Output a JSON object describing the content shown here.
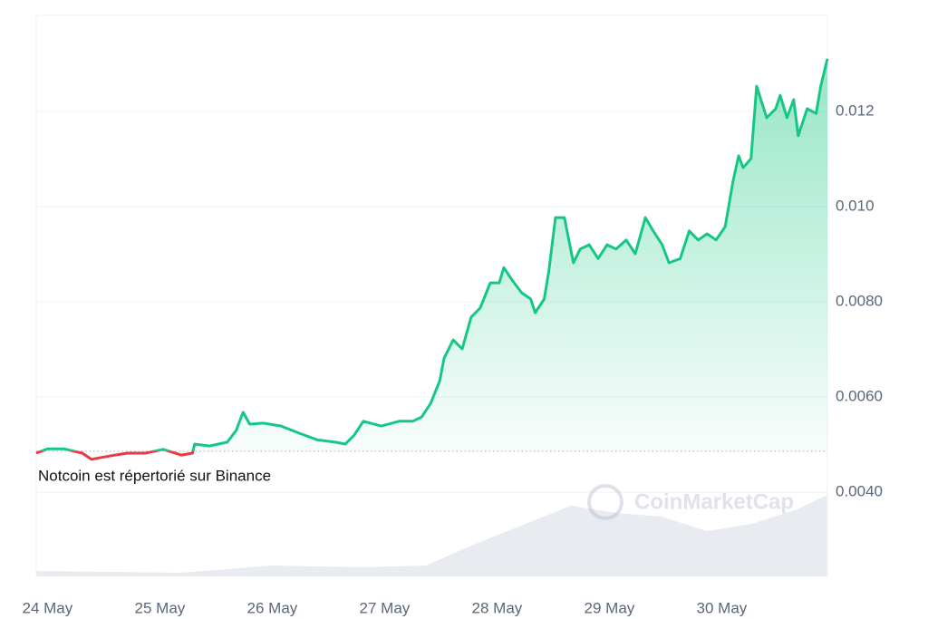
{
  "chart_data": {
    "type": "line",
    "x": [
      -0.1,
      0,
      0.15,
      0.31,
      0.39,
      0.55,
      0.71,
      0.87,
      1.03,
      1.19,
      1.29,
      1.31,
      1.44,
      1.6,
      1.68,
      1.74,
      1.8,
      1.92,
      2.08,
      2.24,
      2.4,
      2.56,
      2.65,
      2.73,
      2.81,
      2.97,
      3.13,
      3.25,
      3.33,
      3.41,
      3.49,
      3.53,
      3.61,
      3.69,
      3.77,
      3.85,
      3.94,
      4.02,
      4.06,
      4.14,
      4.22,
      4.3,
      4.34,
      4.42,
      4.46,
      4.52,
      4.6,
      4.68,
      4.74,
      4.82,
      4.9,
      4.98,
      5.06,
      5.15,
      5.23,
      5.32,
      5.39,
      5.47,
      5.53,
      5.63,
      5.71,
      5.79,
      5.87,
      5.95,
      6.03,
      6.1,
      6.15,
      6.19,
      6.26,
      6.31,
      6.4,
      6.48,
      6.52,
      6.58,
      6.64,
      6.68,
      6.76,
      6.84,
      6.88,
      6.94
    ],
    "values": [
      0.00482,
      0.00491,
      0.00491,
      0.00482,
      0.00469,
      0.00476,
      0.00482,
      0.00482,
      0.0049,
      0.00478,
      0.00482,
      0.00501,
      0.00497,
      0.00505,
      0.0053,
      0.00568,
      0.00543,
      0.00545,
      0.00539,
      0.00524,
      0.0051,
      0.00505,
      0.00501,
      0.0052,
      0.00549,
      0.00539,
      0.00549,
      0.00549,
      0.00558,
      0.00587,
      0.00634,
      0.00682,
      0.0072,
      0.00701,
      0.00768,
      0.00787,
      0.0084,
      0.0084,
      0.00872,
      0.00844,
      0.00819,
      0.00806,
      0.00777,
      0.00806,
      0.00863,
      0.00977,
      0.00977,
      0.00882,
      0.00911,
      0.0092,
      0.00891,
      0.0092,
      0.00911,
      0.0093,
      0.00901,
      0.00977,
      0.00949,
      0.0092,
      0.00882,
      0.00891,
      0.00949,
      0.0093,
      0.00943,
      0.0093,
      0.00958,
      0.01053,
      0.01107,
      0.01082,
      0.01101,
      0.01253,
      0.01187,
      0.01206,
      0.01234,
      0.01187,
      0.01225,
      0.01149,
      0.01206,
      0.01196,
      0.01253,
      0.01311
    ],
    "up_color": "#16c784",
    "down_color": "#ea3943",
    "baseline": 0.00486,
    "xlim": [
      -0.1,
      6.94
    ],
    "xticks": [
      {
        "value": 0,
        "label": "24 May"
      },
      {
        "value": 1,
        "label": "25 May"
      },
      {
        "value": 2,
        "label": "26 May"
      },
      {
        "value": 3,
        "label": "27 May"
      },
      {
        "value": 4,
        "label": "28 May"
      },
      {
        "value": 5,
        "label": "29 May"
      },
      {
        "value": 6,
        "label": "30 May"
      }
    ],
    "ylim": [
      0.00223,
      0.01402
    ],
    "yticks": [
      {
        "value": 0.004,
        "label": "0.0040"
      },
      {
        "value": 0.006,
        "label": "0.0060"
      },
      {
        "value": 0.008,
        "label": "0.0080"
      },
      {
        "value": 0.01,
        "label": "0.010"
      },
      0.012
    ],
    "grid": true,
    "annotation": "Notcoin est répertorié sur Binance",
    "watermark": "CoinMarketCap"
  }
}
